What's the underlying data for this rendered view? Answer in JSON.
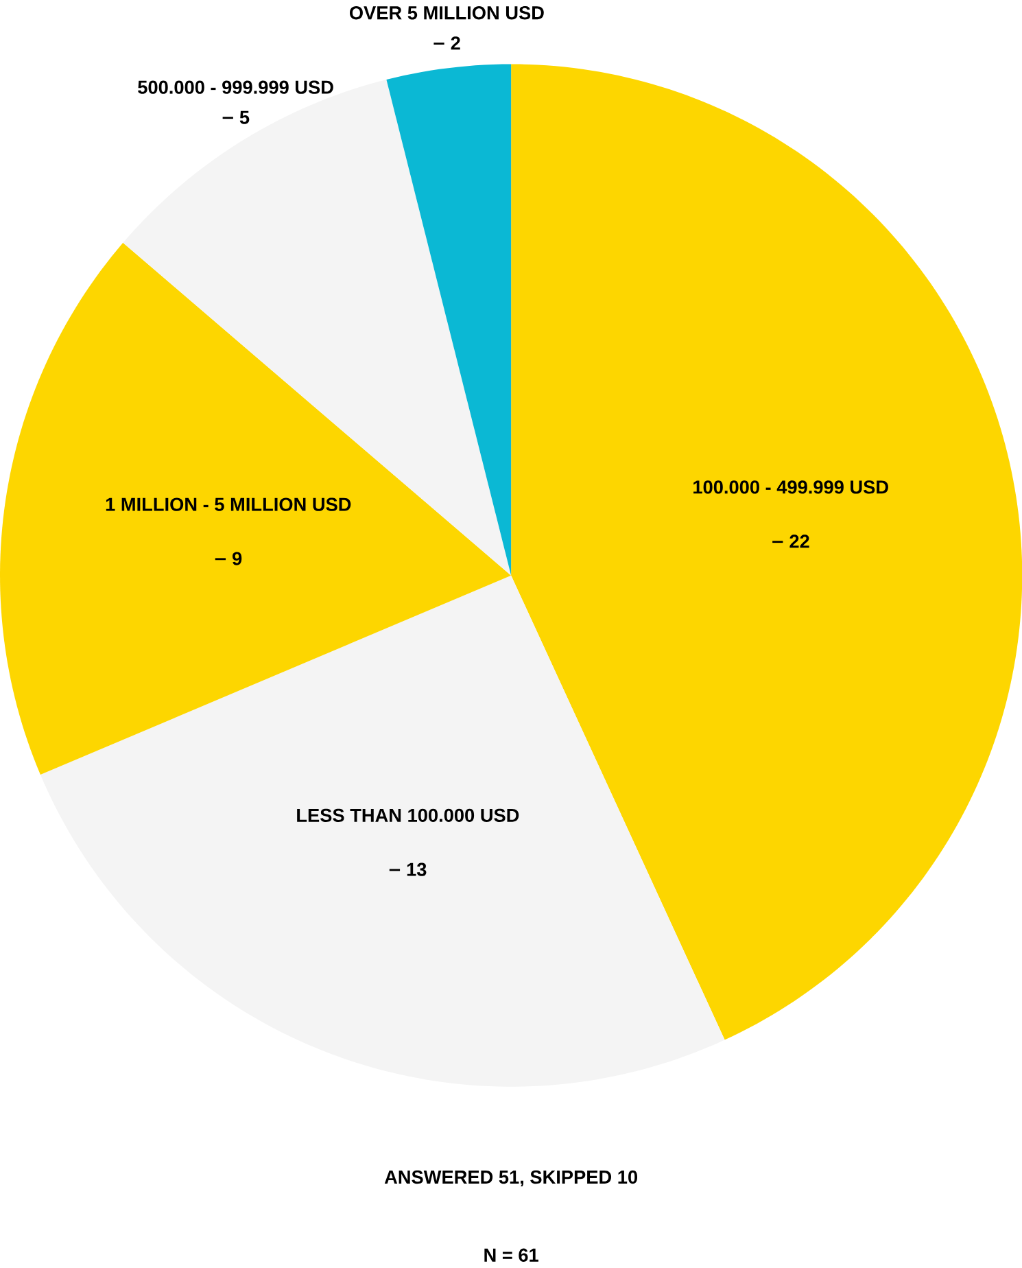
{
  "chart_data": {
    "type": "pie",
    "categories": [
      "100.000 - 499.999 USD",
      "LESS THAN 100.000 USD",
      "1 MILLION - 5 MILLION USD",
      "500.000 -  999.999 USD",
      "OVER 5 MILLION USD"
    ],
    "values": [
      22,
      13,
      9,
      5,
      2
    ],
    "data_labels": true,
    "colors": [
      "#fdd600",
      "#f4f4f4",
      "#fdd600",
      "#f4f4f4",
      "#0bb8d4"
    ],
    "annotations": [
      "ANSWERED 51, SKIPPED 10",
      "N = 61"
    ]
  }
}
